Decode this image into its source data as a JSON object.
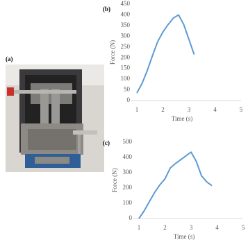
{
  "figure": {
    "panel_label": "(a)"
  },
  "chart_data": [
    {
      "type": "line",
      "title": "(b)",
      "x_label": "Time (s)",
      "y_label": "Force (N)",
      "x": [
        1,
        1.2,
        1.4,
        1.6,
        1.8,
        2.0,
        2.2,
        2.4,
        2.6,
        2.8,
        3.0,
        3.2
      ],
      "values": [
        35,
        80,
        140,
        210,
        275,
        320,
        355,
        385,
        400,
        355,
        285,
        215
      ],
      "color": "#5b9bd5",
      "xlim": [
        1,
        5
      ],
      "xticks": [
        1,
        2,
        3,
        4,
        5
      ],
      "ylim": [
        0,
        450
      ],
      "yticks": [
        0,
        50,
        100,
        150,
        200,
        250,
        300,
        350,
        400,
        450
      ],
      "grid": false
    },
    {
      "type": "line",
      "title": "(c)",
      "x_label": "Time (s)",
      "y_label": "Force (N)",
      "x": [
        1,
        1.2,
        1.4,
        1.6,
        1.8,
        2.0,
        2.2,
        2.4,
        2.6,
        2.8,
        3.0,
        3.2,
        3.4,
        3.6,
        3.8
      ],
      "values": [
        0,
        50,
        110,
        170,
        220,
        260,
        330,
        360,
        385,
        410,
        435,
        375,
        280,
        240,
        215
      ],
      "color": "#5b9bd5",
      "xlim": [
        1,
        5
      ],
      "xticks": [
        1,
        2,
        3,
        4,
        5
      ],
      "ylim": [
        0,
        500
      ],
      "yticks": [
        0,
        100,
        200,
        300,
        400,
        500
      ],
      "grid": false
    }
  ]
}
